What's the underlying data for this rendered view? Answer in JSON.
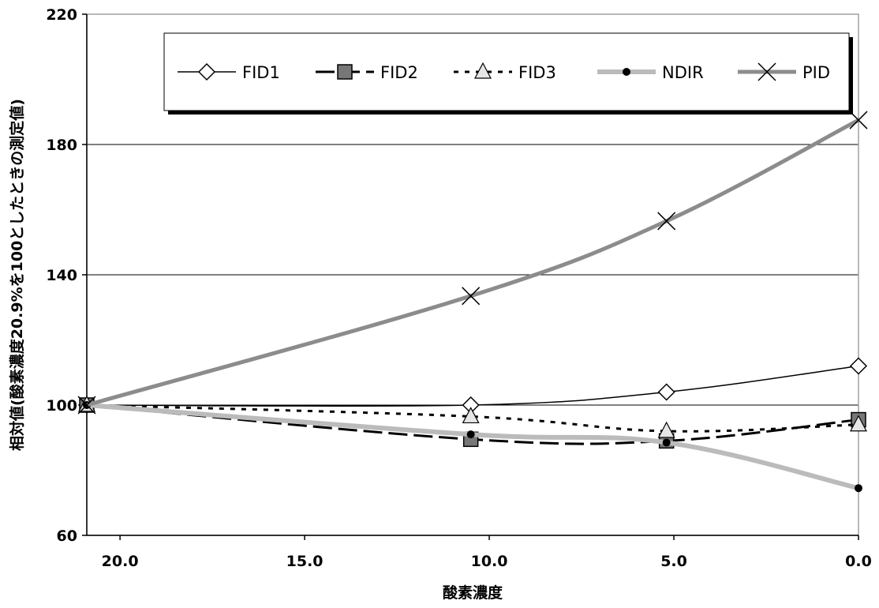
{
  "chart_data": {
    "type": "line",
    "xlabel": "酸素濃度",
    "ylabel": "相対値(酸素濃度20.9%を100としたときの測定値)",
    "x_ticks": [
      "20.0",
      "15.0",
      "10.0",
      "5.0",
      "0.0"
    ],
    "y_ticks": [
      "60",
      "100",
      "140",
      "180",
      "220"
    ],
    "xlim": [
      20.9,
      0.0
    ],
    "x_reversed": true,
    "ylim": [
      60,
      220
    ],
    "grid": "horizontal",
    "legend_position": "top",
    "x": [
      20.9,
      10.5,
      5.2,
      0.0
    ],
    "series": [
      {
        "name": "FID1",
        "values": [
          100,
          100,
          104,
          112
        ],
        "color": "#000000",
        "marker": "diamond",
        "style": "solid-thin"
      },
      {
        "name": "FID2",
        "values": [
          100,
          89.5,
          89,
          95.5
        ],
        "color": "#000000",
        "marker": "square",
        "style": "long-dash"
      },
      {
        "name": "FID3",
        "values": [
          100,
          96.5,
          92,
          94
        ],
        "color": "#000000",
        "marker": "triangle",
        "style": "short-dash"
      },
      {
        "name": "NDIR",
        "values": [
          100,
          91,
          88.5,
          74.5
        ],
        "color": "#bbbbbb",
        "marker": "dot",
        "style": "gray-thick"
      },
      {
        "name": "PID",
        "values": [
          100,
          133.5,
          156.5,
          187.5
        ],
        "color": "#8c8c8c",
        "marker": "x",
        "style": "gray-bold"
      }
    ]
  }
}
